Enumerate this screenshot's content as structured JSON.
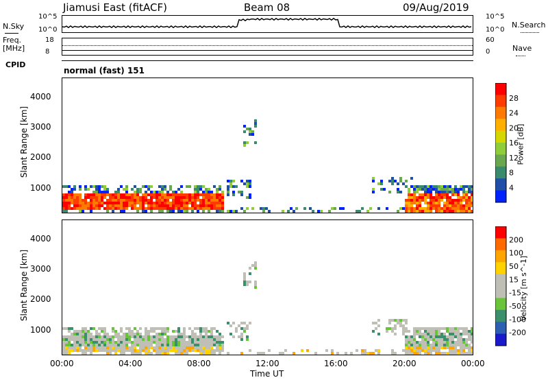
{
  "header": {
    "station": "Jiamusi East (fitACF)",
    "beam": "Beam 08",
    "date": "09/Aug/2019"
  },
  "top_panels": {
    "nsky_label": "N.Sky",
    "nsearch_label": "N.Search",
    "nsky_ticks": [
      "10^5",
      "10^0"
    ],
    "nsearch_ticks": [
      "10^5",
      "10^0"
    ],
    "freq_label_1": "Freq.",
    "freq_label_2": "[MHz]",
    "freq_ticks": [
      "18",
      "8"
    ],
    "nave_label": "Nave",
    "nave_ticks": [
      "60",
      "0"
    ],
    "cpid_label": "CPID",
    "cpid_text": "normal (fast) 151"
  },
  "chart_data": [
    {
      "type": "heatmap",
      "name": "power",
      "ylabel": "Slant Range [km]",
      "yticks": [
        1000,
        2000,
        3000,
        4000
      ],
      "ylim": [
        180,
        4600
      ],
      "xlim": [
        0,
        24
      ],
      "colorbar": {
        "label": "Power [dB]",
        "ticks": [
          "28",
          "24",
          "20",
          "16",
          "12",
          "8",
          "4"
        ],
        "colors": [
          "#0022ff",
          "#1f4fa6",
          "#3a8a6e",
          "#6aa84f",
          "#8fce3a",
          "#d6d600",
          "#ffb000",
          "#ff7a00",
          "#ff3c00",
          "#ff0000"
        ]
      }
    },
    {
      "type": "heatmap",
      "name": "velocity",
      "ylabel": "Slant Range [km]",
      "yticks": [
        1000,
        2000,
        3000,
        4000
      ],
      "ylim": [
        180,
        4600
      ],
      "xlim": [
        0,
        24
      ],
      "colorbar": {
        "label": "Velocity [m s^-1]",
        "ticks": [
          "200",
          "100",
          "50",
          "15",
          "-15",
          "-50",
          "-100",
          "-200"
        ],
        "colors": [
          "#1a1acc",
          "#2d5fb3",
          "#3b8f6a",
          "#6ac43a",
          "#bfbfb5",
          "#bfbfb5",
          "#ffd200",
          "#ffa500",
          "#ff6a00",
          "#ff0000"
        ]
      }
    }
  ],
  "xaxis": {
    "label": "Time UT",
    "ticks": [
      "00:00",
      "04:00",
      "08:00",
      "12:00",
      "16:00",
      "20:00",
      "00:00"
    ]
  }
}
